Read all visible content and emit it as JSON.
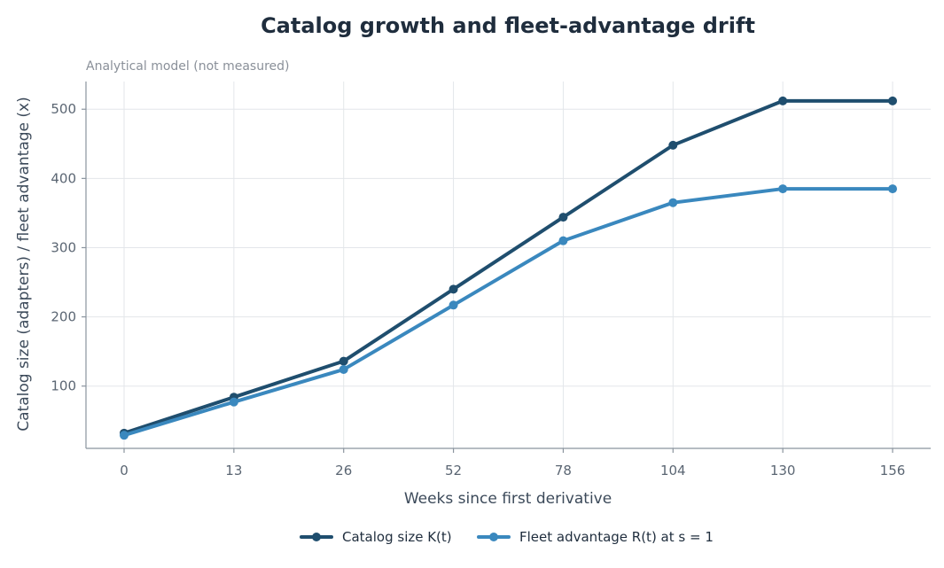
{
  "chart_data": {
    "type": "line",
    "title": "Catalog growth and fleet-advantage drift",
    "subtitle": "Analytical model (not measured)",
    "xlabel": "Weeks since first derivative",
    "ylabel": "Catalog size (adapters) / fleet advantage (x)",
    "categories": [
      "0",
      "13",
      "26",
      "52",
      "78",
      "104",
      "130",
      "156"
    ],
    "yticks": [
      100,
      200,
      300,
      400,
      500
    ],
    "ylim": [
      10,
      540
    ],
    "grid": true,
    "legend_position": "bottom-center",
    "series": [
      {
        "name": "Catalog size K(t)",
        "color": "#1f4e6e",
        "values": [
          32,
          84,
          136,
          240,
          344,
          448,
          512,
          512
        ]
      },
      {
        "name": "Fleet advantage R(t) at s = 1",
        "color": "#3a88be",
        "values": [
          29,
          77,
          124,
          217,
          310,
          365,
          385,
          385
        ]
      }
    ]
  }
}
